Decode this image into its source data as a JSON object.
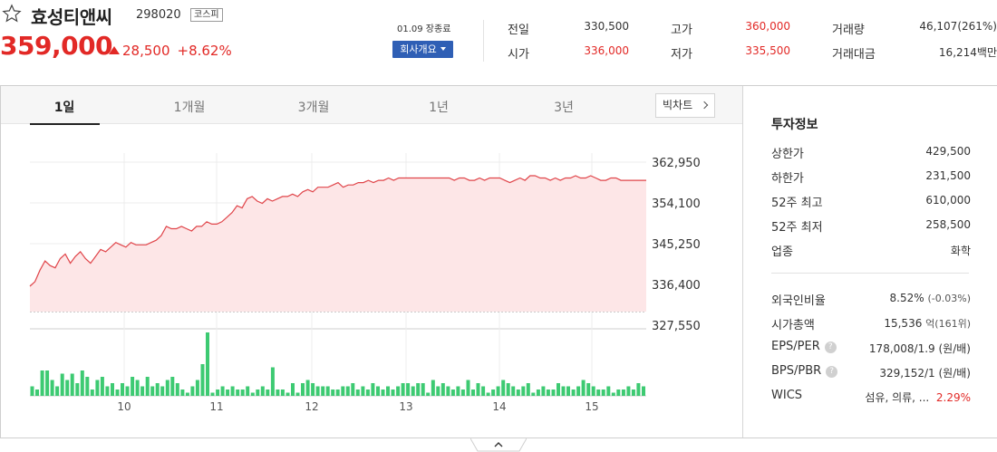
{
  "header": {
    "stock_name": "효성티앤씨",
    "stock_code": "298020",
    "market": "코스피",
    "price": "359,000",
    "change": "28,500",
    "change_pct": "+8.62%",
    "close_label": "01.09 장종료",
    "info_button": "회사개요",
    "quotes": [
      {
        "label": "전일",
        "value": "330,500",
        "color": "normal"
      },
      {
        "label": "고가",
        "value": "360,000",
        "color": "red"
      },
      {
        "label": "거래량",
        "value": "46,107(261%)",
        "color": "normal"
      },
      {
        "label": "시가",
        "value": "336,000",
        "color": "red"
      },
      {
        "label": "저가",
        "value": "335,500",
        "color": "red"
      },
      {
        "label": "거래대금",
        "value": "16,214백만",
        "color": "normal"
      }
    ]
  },
  "tabs": [
    "1일",
    "1개월",
    "3개월",
    "1년",
    "3년"
  ],
  "active_tab": "1일",
  "big_chart_button": "빅차트",
  "chart_data": {
    "type": "area",
    "x_ticks": [
      "10",
      "11",
      "12",
      "13",
      "14",
      "15"
    ],
    "y_ticks": [
      "362,950",
      "354,100",
      "345,250",
      "336,400",
      "327,550"
    ],
    "ylim": [
      327550,
      362950
    ],
    "prev_close": 330500,
    "grid": true,
    "price_series": [
      336000,
      337000,
      339500,
      341500,
      340500,
      340000,
      342000,
      343000,
      341000,
      342500,
      343500,
      342000,
      341000,
      342500,
      344000,
      343500,
      344500,
      345500,
      345000,
      344500,
      345500,
      345000,
      345000,
      345000,
      345500,
      346000,
      347000,
      349000,
      348500,
      348500,
      349000,
      348500,
      348000,
      349000,
      349000,
      350000,
      349500,
      349500,
      350000,
      351000,
      352000,
      353500,
      353000,
      355000,
      355500,
      354500,
      354000,
      355000,
      354500,
      355000,
      355500,
      355500,
      356000,
      355500,
      356500,
      357000,
      356500,
      357500,
      357500,
      357500,
      358000,
      358500,
      357500,
      358000,
      358000,
      358500,
      358500,
      359000,
      358500,
      359000,
      359000,
      359500,
      359000,
      359500,
      359500,
      359500,
      359500,
      359500,
      359500,
      359500,
      359500,
      359500,
      359500,
      359500,
      359000,
      359500,
      359500,
      359000,
      359000,
      359500,
      359000,
      359500,
      359500,
      359500,
      359000,
      358500,
      359000,
      359500,
      359000,
      360000,
      360000,
      359500,
      359500,
      359000,
      359500,
      359000,
      359500,
      359500,
      360000,
      359500,
      359500,
      360000,
      359500,
      359000,
      359000,
      359500,
      359500,
      359000,
      359000,
      359000,
      359000,
      359000,
      359000
    ],
    "volume_series": [
      3,
      2,
      8,
      8,
      5,
      3,
      7,
      5,
      7,
      4,
      8,
      6,
      2,
      5,
      6,
      3,
      4,
      2,
      4,
      3,
      6,
      5,
      3,
      6,
      3,
      4,
      3,
      5,
      6,
      4,
      2,
      1,
      3,
      5,
      10,
      20,
      1,
      2,
      3,
      2,
      3,
      2,
      2,
      3,
      1,
      2,
      3,
      2,
      9,
      2,
      2,
      1,
      4,
      1,
      4,
      5,
      4,
      3,
      3,
      3,
      2,
      2,
      3,
      3,
      4,
      2,
      3,
      2,
      4,
      3,
      2,
      3,
      2,
      3,
      4,
      4,
      3,
      4,
      4,
      1,
      5,
      3,
      4,
      3,
      2,
      3,
      2,
      5,
      2,
      4,
      3,
      1,
      2,
      3,
      5,
      4,
      3,
      2,
      3,
      4,
      1,
      2,
      3,
      2,
      2,
      4,
      3,
      3,
      2,
      3,
      5,
      4,
      3,
      2,
      2,
      3,
      1,
      2,
      2,
      3,
      2,
      4,
      3
    ]
  },
  "invest_info": {
    "title": "투자정보",
    "rows1": [
      {
        "label": "상한가",
        "value": "429,500",
        "color": "red"
      },
      {
        "label": "하한가",
        "value": "231,500",
        "color": "blue"
      },
      {
        "label": "52주 최고",
        "value": "610,000",
        "color": "normal"
      },
      {
        "label": "52주 최저",
        "value": "258,500",
        "color": "normal"
      },
      {
        "label": "업종",
        "value": "화학",
        "color": "normal"
      }
    ],
    "foreign_ratio_label": "외국인비율",
    "foreign_ratio_value": "8.52%",
    "foreign_ratio_sub": "(-0.03%)",
    "mktcap_label": "시가총액",
    "mktcap_value": "15,536",
    "mktcap_unit": "억",
    "mktcap_sub": "(161위)",
    "eps_label": "EPS/PER",
    "eps_value": "178,008/1.9",
    "eps_unit": "(원/배)",
    "bps_label": "BPS/PBR",
    "bps_value": "329,152/1",
    "bps_unit": "(원/배)",
    "wics_label": "WICS",
    "wics_value": "섬유, 의류, ...",
    "wics_pct": "2.29%"
  },
  "colors": {
    "up": "#e22926",
    "down": "#2a56c6",
    "line": "#e0454a",
    "area": "#fde6e7",
    "volume": "#3dca72",
    "accent": "#2f5fb5"
  }
}
